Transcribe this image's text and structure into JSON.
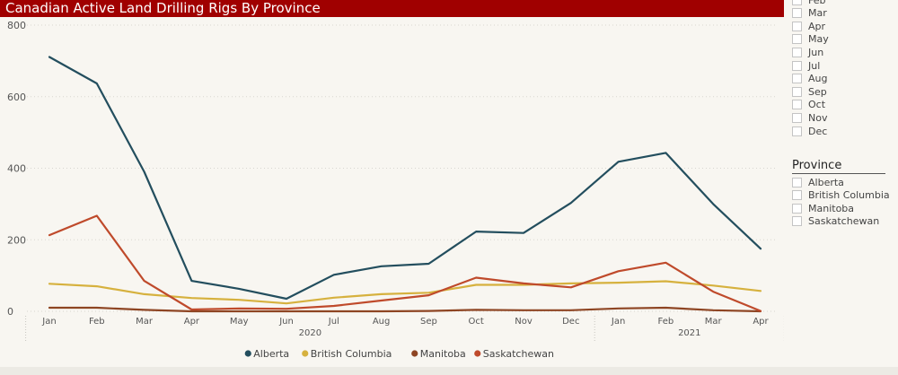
{
  "title": "Canadian Active Land Drilling Rigs By Province",
  "month_slicer": {
    "items": [
      "Feb",
      "Mar",
      "Apr",
      "May",
      "Jun",
      "Jul",
      "Aug",
      "Sep",
      "Oct",
      "Nov",
      "Dec"
    ]
  },
  "province_slicer": {
    "header": "Province",
    "items": [
      "Alberta",
      "British Columbia",
      "Manitoba",
      "Saskatchewan"
    ]
  },
  "chart_data": {
    "type": "line",
    "title": "Canadian Active Land Drilling Rigs By Province",
    "categories": [
      "Jan",
      "Feb",
      "Mar",
      "Apr",
      "May",
      "Jun",
      "Jul",
      "Aug",
      "Sep",
      "Oct",
      "Nov",
      "Dec",
      "Jan",
      "Feb",
      "Mar",
      "Apr"
    ],
    "year_groups": [
      {
        "label": "2020",
        "start": 0,
        "end": 11
      },
      {
        "label": "2021",
        "start": 12,
        "end": 15
      }
    ],
    "ylim": [
      0,
      800
    ],
    "yticks": [
      0,
      200,
      400,
      600,
      800
    ],
    "grid": true,
    "legend_position": "bottom",
    "series": [
      {
        "name": "Alberta",
        "color": "#234e5e",
        "values": [
          711,
          637,
          390,
          85,
          63,
          35,
          102,
          126,
          133,
          223,
          219,
          303,
          418,
          443,
          300,
          175
        ]
      },
      {
        "name": "British Columbia",
        "color": "#d6b13e",
        "values": [
          77,
          70,
          48,
          37,
          32,
          22,
          38,
          48,
          52,
          74,
          74,
          78,
          80,
          84,
          72,
          57
        ]
      },
      {
        "name": "Manitoba",
        "color": "#8e4523",
        "values": [
          10,
          10,
          4,
          0,
          0,
          0,
          0,
          0,
          1,
          4,
          3,
          3,
          8,
          10,
          3,
          0
        ]
      },
      {
        "name": "Saskatchewan",
        "color": "#bf4a2b",
        "values": [
          213,
          267,
          85,
          5,
          8,
          7,
          15,
          30,
          45,
          94,
          78,
          67,
          112,
          136,
          55,
          1
        ]
      }
    ]
  }
}
